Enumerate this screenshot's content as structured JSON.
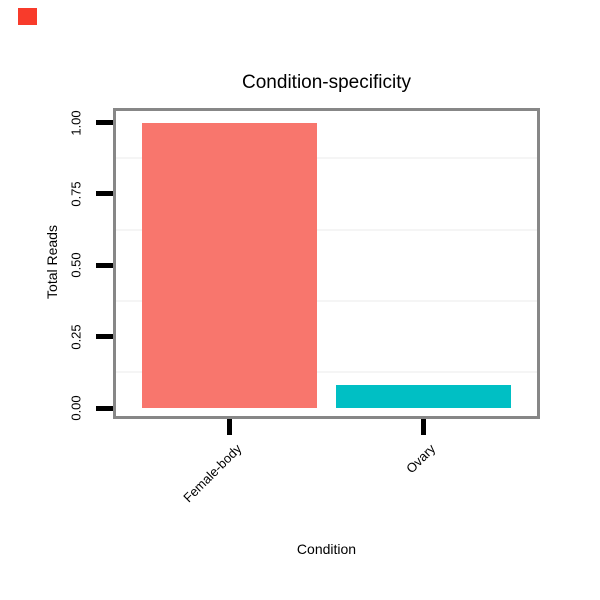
{
  "annotations": {
    "red_marker_color": "#f83b2b"
  },
  "chart_data": {
    "type": "bar",
    "title": "Condition-specificity",
    "xlabel": "Condition",
    "ylabel": "Total Reads",
    "categories": [
      "Female-body",
      "Ovary"
    ],
    "values": [
      1.0,
      0.08
    ],
    "bar_colors": [
      "#F8766D",
      "#00BFC4"
    ],
    "ylim": [
      0,
      1.0
    ],
    "yticks": [
      {
        "label": "0.00",
        "value": 0.0
      },
      {
        "label": "0.25",
        "value": 0.25
      },
      {
        "label": "0.50",
        "value": 0.5
      },
      {
        "label": "0.75",
        "value": 0.75
      },
      {
        "label": "1.00",
        "value": 1.0
      }
    ],
    "minor_gridlines": [
      0.125,
      0.375,
      0.625,
      0.875
    ],
    "grid_color": "#f5f5f5",
    "panel_border_color": "#878787",
    "tick_color": "#000000",
    "legend": "none"
  }
}
